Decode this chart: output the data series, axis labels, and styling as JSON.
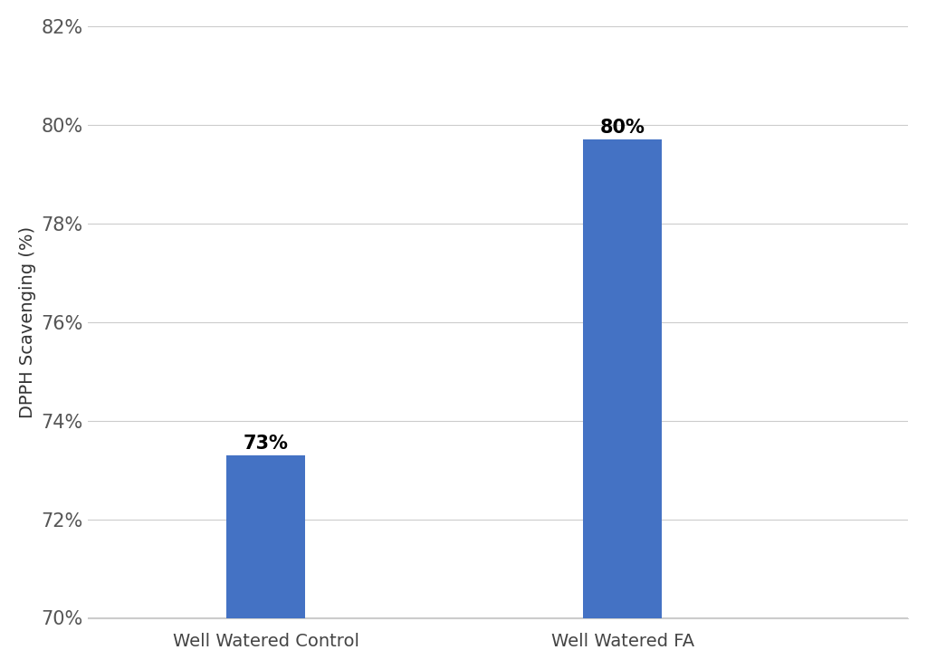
{
  "categories": [
    "Well Watered Control",
    "Well Watered FA"
  ],
  "values": [
    73.3,
    79.7
  ],
  "labels": [
    "73%",
    "80%"
  ],
  "bar_color": "#4472C4",
  "ylabel": "DPPH Scavenging (%)",
  "ylim": [
    70,
    82
  ],
  "yticks": [
    70,
    72,
    74,
    76,
    78,
    80,
    82
  ],
  "ytick_labels": [
    "70%",
    "72%",
    "74%",
    "76%",
    "78%",
    "80%",
    "82%"
  ],
  "background_color": "#ffffff",
  "grid_color": "#cccccc",
  "bar_width": 0.22,
  "x_positions": [
    1,
    2
  ],
  "xlim": [
    0.5,
    2.8
  ],
  "label_fontsize": 14,
  "tick_fontsize": 15,
  "ylabel_fontsize": 14,
  "annotation_fontsize": 15
}
